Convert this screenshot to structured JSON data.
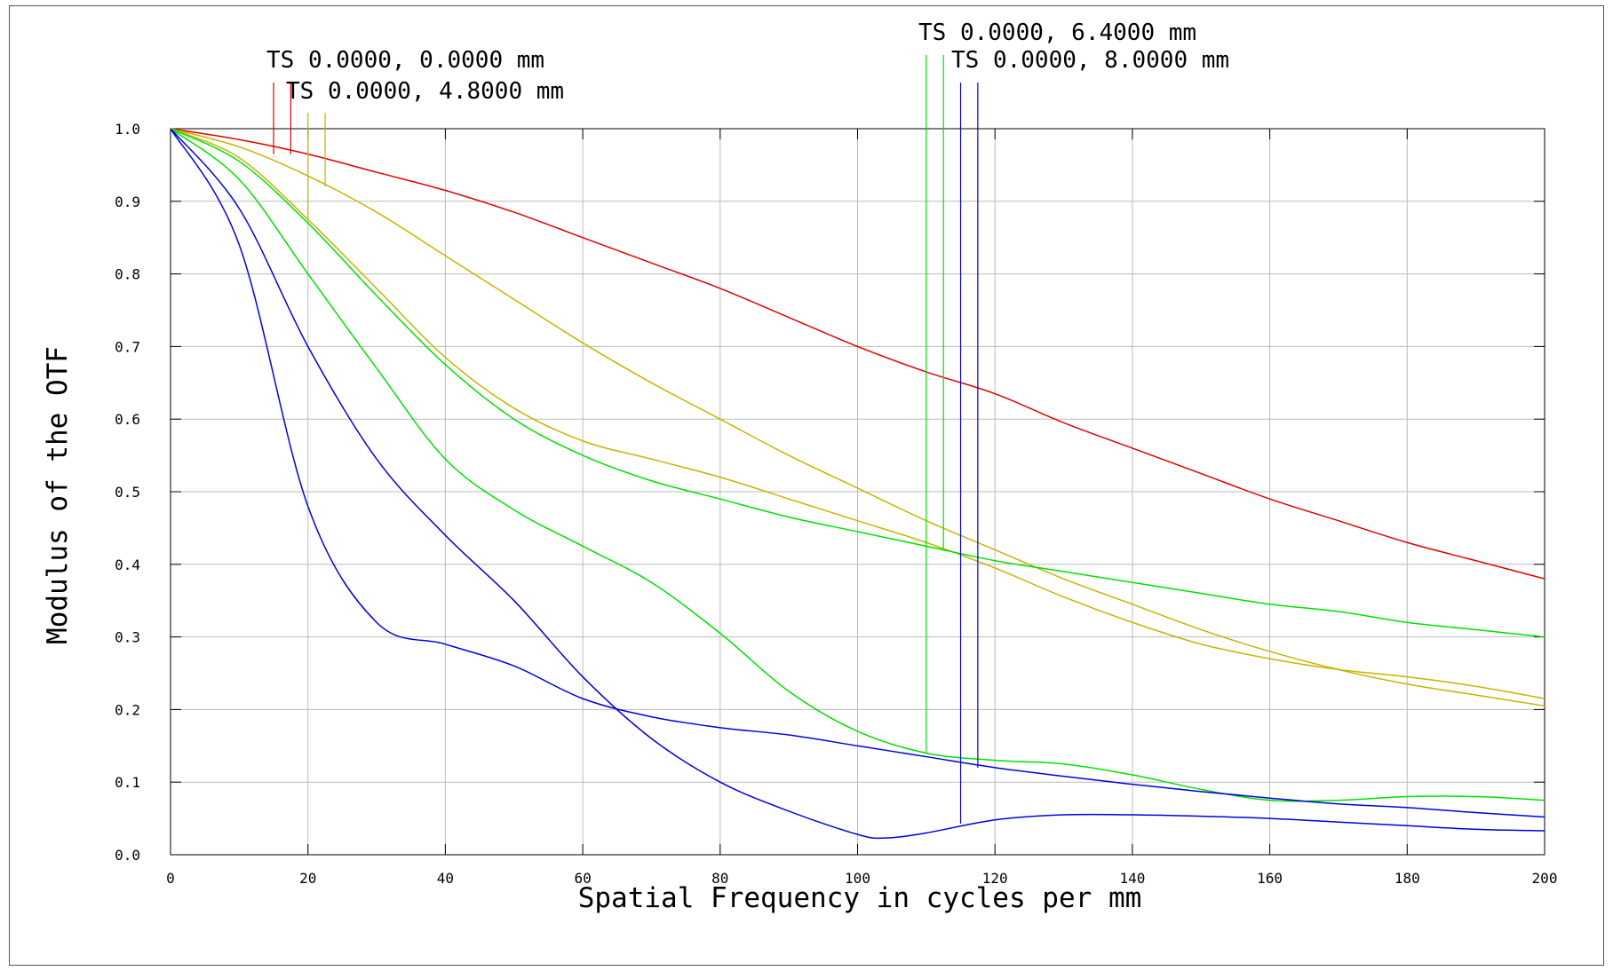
{
  "chart_data": {
    "type": "line",
    "xlabel": "Spatial Frequency in cycles per mm",
    "ylabel": "Modulus of the OTF",
    "xlim": [
      0,
      200
    ],
    "ylim": [
      0,
      1
    ],
    "grid": true,
    "x_ticks": [
      "0",
      "20",
      "40",
      "60",
      "80",
      "100",
      "120",
      "140",
      "160",
      "180",
      "200"
    ],
    "y_ticks": [
      "0.0",
      "0.1",
      "0.2",
      "0.3",
      "0.4",
      "0.5",
      "0.6",
      "0.7",
      "0.8",
      "0.9",
      "1.0"
    ],
    "legend": [
      {
        "label": "TS 0.0000, 0.0000 mm",
        "color": "#e00000"
      },
      {
        "label": "TS 0.0000, 4.8000 mm",
        "color": "#c8b400"
      },
      {
        "label": "TS 0.0000, 6.4000 mm",
        "color": "#00e000"
      },
      {
        "label": "TS 0.0000, 8.0000 mm",
        "color": "#0000e0"
      }
    ],
    "series": [
      {
        "color": "#e00000",
        "points": [
          [
            0,
            1.0
          ],
          [
            10,
            0.985
          ],
          [
            20,
            0.965
          ],
          [
            30,
            0.94
          ],
          [
            40,
            0.915
          ],
          [
            50,
            0.885
          ],
          [
            60,
            0.85
          ],
          [
            70,
            0.815
          ],
          [
            80,
            0.78
          ],
          [
            90,
            0.74
          ],
          [
            100,
            0.7
          ],
          [
            110,
            0.665
          ],
          [
            120,
            0.635
          ],
          [
            130,
            0.595
          ],
          [
            140,
            0.56
          ],
          [
            150,
            0.525
          ],
          [
            160,
            0.49
          ],
          [
            170,
            0.46
          ],
          [
            180,
            0.43
          ],
          [
            190,
            0.405
          ],
          [
            200,
            0.38
          ]
        ]
      },
      {
        "color": "#c8b400",
        "points": [
          [
            0,
            1.0
          ],
          [
            10,
            0.975
          ],
          [
            20,
            0.935
          ],
          [
            30,
            0.885
          ],
          [
            40,
            0.825
          ],
          [
            50,
            0.765
          ],
          [
            60,
            0.705
          ],
          [
            70,
            0.65
          ],
          [
            80,
            0.6
          ],
          [
            90,
            0.55
          ],
          [
            100,
            0.505
          ],
          [
            110,
            0.46
          ],
          [
            120,
            0.42
          ],
          [
            130,
            0.38
          ],
          [
            140,
            0.345
          ],
          [
            150,
            0.31
          ],
          [
            160,
            0.28
          ],
          [
            170,
            0.255
          ],
          [
            180,
            0.235
          ],
          [
            190,
            0.22
          ],
          [
            200,
            0.205
          ]
        ]
      },
      {
        "color": "#c8b400",
        "points": [
          [
            0,
            1.0
          ],
          [
            10,
            0.96
          ],
          [
            20,
            0.875
          ],
          [
            30,
            0.78
          ],
          [
            40,
            0.685
          ],
          [
            50,
            0.615
          ],
          [
            60,
            0.57
          ],
          [
            70,
            0.545
          ],
          [
            80,
            0.52
          ],
          [
            90,
            0.49
          ],
          [
            100,
            0.46
          ],
          [
            110,
            0.43
          ],
          [
            120,
            0.395
          ],
          [
            130,
            0.355
          ],
          [
            140,
            0.32
          ],
          [
            150,
            0.29
          ],
          [
            160,
            0.27
          ],
          [
            170,
            0.255
          ],
          [
            180,
            0.245
          ],
          [
            190,
            0.232
          ],
          [
            200,
            0.215
          ]
        ]
      },
      {
        "color": "#00e000",
        "points": [
          [
            0,
            1.0
          ],
          [
            10,
            0.955
          ],
          [
            20,
            0.87
          ],
          [
            30,
            0.77
          ],
          [
            40,
            0.675
          ],
          [
            50,
            0.6
          ],
          [
            60,
            0.55
          ],
          [
            70,
            0.515
          ],
          [
            80,
            0.49
          ],
          [
            90,
            0.465
          ],
          [
            100,
            0.445
          ],
          [
            110,
            0.425
          ],
          [
            120,
            0.405
          ],
          [
            130,
            0.39
          ],
          [
            140,
            0.375
          ],
          [
            150,
            0.36
          ],
          [
            160,
            0.345
          ],
          [
            170,
            0.335
          ],
          [
            180,
            0.32
          ],
          [
            190,
            0.31
          ],
          [
            200,
            0.3
          ]
        ]
      },
      {
        "color": "#00e000",
        "points": [
          [
            0,
            1.0
          ],
          [
            10,
            0.93
          ],
          [
            20,
            0.8
          ],
          [
            30,
            0.67
          ],
          [
            40,
            0.545
          ],
          [
            50,
            0.475
          ],
          [
            60,
            0.425
          ],
          [
            70,
            0.375
          ],
          [
            80,
            0.305
          ],
          [
            90,
            0.225
          ],
          [
            100,
            0.17
          ],
          [
            110,
            0.14
          ],
          [
            120,
            0.13
          ],
          [
            130,
            0.125
          ],
          [
            140,
            0.11
          ],
          [
            150,
            0.09
          ],
          [
            160,
            0.075
          ],
          [
            170,
            0.075
          ],
          [
            180,
            0.08
          ],
          [
            190,
            0.08
          ],
          [
            200,
            0.075
          ]
        ]
      },
      {
        "color": "#0000e0",
        "points": [
          [
            0,
            1.0
          ],
          [
            10,
            0.89
          ],
          [
            20,
            0.7
          ],
          [
            30,
            0.545
          ],
          [
            40,
            0.44
          ],
          [
            50,
            0.35
          ],
          [
            60,
            0.245
          ],
          [
            70,
            0.16
          ],
          [
            80,
            0.1
          ],
          [
            90,
            0.06
          ],
          [
            100,
            0.028
          ],
          [
            104,
            0.023
          ],
          [
            110,
            0.03
          ],
          [
            120,
            0.048
          ],
          [
            130,
            0.055
          ],
          [
            140,
            0.055
          ],
          [
            150,
            0.053
          ],
          [
            160,
            0.05
          ],
          [
            170,
            0.045
          ],
          [
            180,
            0.04
          ],
          [
            190,
            0.035
          ],
          [
            200,
            0.033
          ]
        ]
      },
      {
        "color": "#0000e0",
        "points": [
          [
            0,
            1.0
          ],
          [
            10,
            0.84
          ],
          [
            20,
            0.48
          ],
          [
            30,
            0.32
          ],
          [
            40,
            0.29
          ],
          [
            50,
            0.26
          ],
          [
            60,
            0.215
          ],
          [
            70,
            0.19
          ],
          [
            80,
            0.175
          ],
          [
            90,
            0.165
          ],
          [
            100,
            0.15
          ],
          [
            110,
            0.135
          ],
          [
            120,
            0.12
          ],
          [
            130,
            0.108
          ],
          [
            140,
            0.097
          ],
          [
            150,
            0.087
          ],
          [
            160,
            0.078
          ],
          [
            170,
            0.07
          ],
          [
            180,
            0.065
          ],
          [
            190,
            0.058
          ],
          [
            200,
            0.052
          ]
        ]
      }
    ],
    "markers": [
      {
        "color": "#e00000",
        "x": 15,
        "y": 0.965
      },
      {
        "color": "#e00000",
        "x": 17.5,
        "y": 0.965
      },
      {
        "color": "#c8b400",
        "x": 20,
        "y": 0.875
      },
      {
        "color": "#c8b400",
        "x": 22.5,
        "y": 0.92
      },
      {
        "color": "#00e000",
        "x": 110,
        "y": 0.14
      },
      {
        "color": "#00e000",
        "x": 112.5,
        "y": 0.42
      },
      {
        "color": "#0000e0",
        "x": 115,
        "y": 0.043
      },
      {
        "color": "#0000e0",
        "x": 117.5,
        "y": 0.12
      }
    ]
  }
}
